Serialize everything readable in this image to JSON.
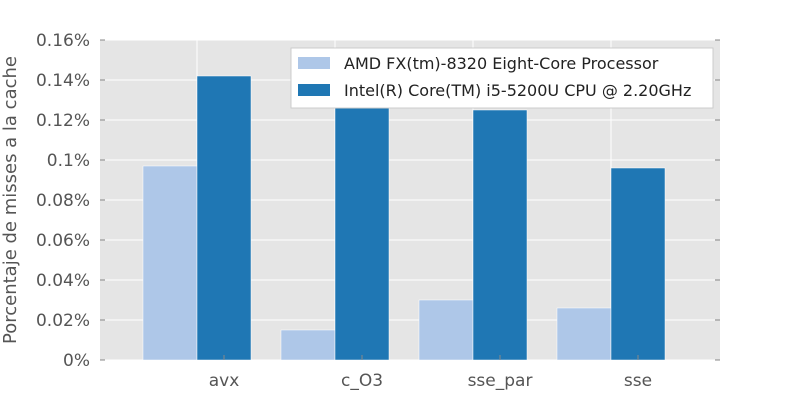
{
  "chart_data": {
    "type": "bar",
    "categories": [
      "avx",
      "c_O3",
      "sse_par",
      "sse"
    ],
    "series": [
      {
        "name": "AMD FX(tm)-8320 Eight-Core Processor",
        "values": [
          0.097,
          0.015,
          0.03,
          0.026
        ]
      },
      {
        "name": "Intel(R) Core(TM) i5-5200U CPU @ 2.20GHz",
        "values": [
          0.142,
          0.126,
          0.125,
          0.096
        ]
      }
    ],
    "ylabel": "Porcentaje de misses a la cache",
    "xlabel": "",
    "ylim": [
      0,
      0.16
    ],
    "yticks": [
      "0%",
      "0.02%",
      "0.04%",
      "0.06%",
      "0.08%",
      "0.1%",
      "0.12%",
      "0.14%",
      "0.16%"
    ],
    "grid": true,
    "legend_position": "top-right",
    "colors": {
      "background": "#e5e5e5",
      "grid": "#ffffff",
      "series": [
        "#aec7e8",
        "#1f77b4"
      ]
    }
  }
}
